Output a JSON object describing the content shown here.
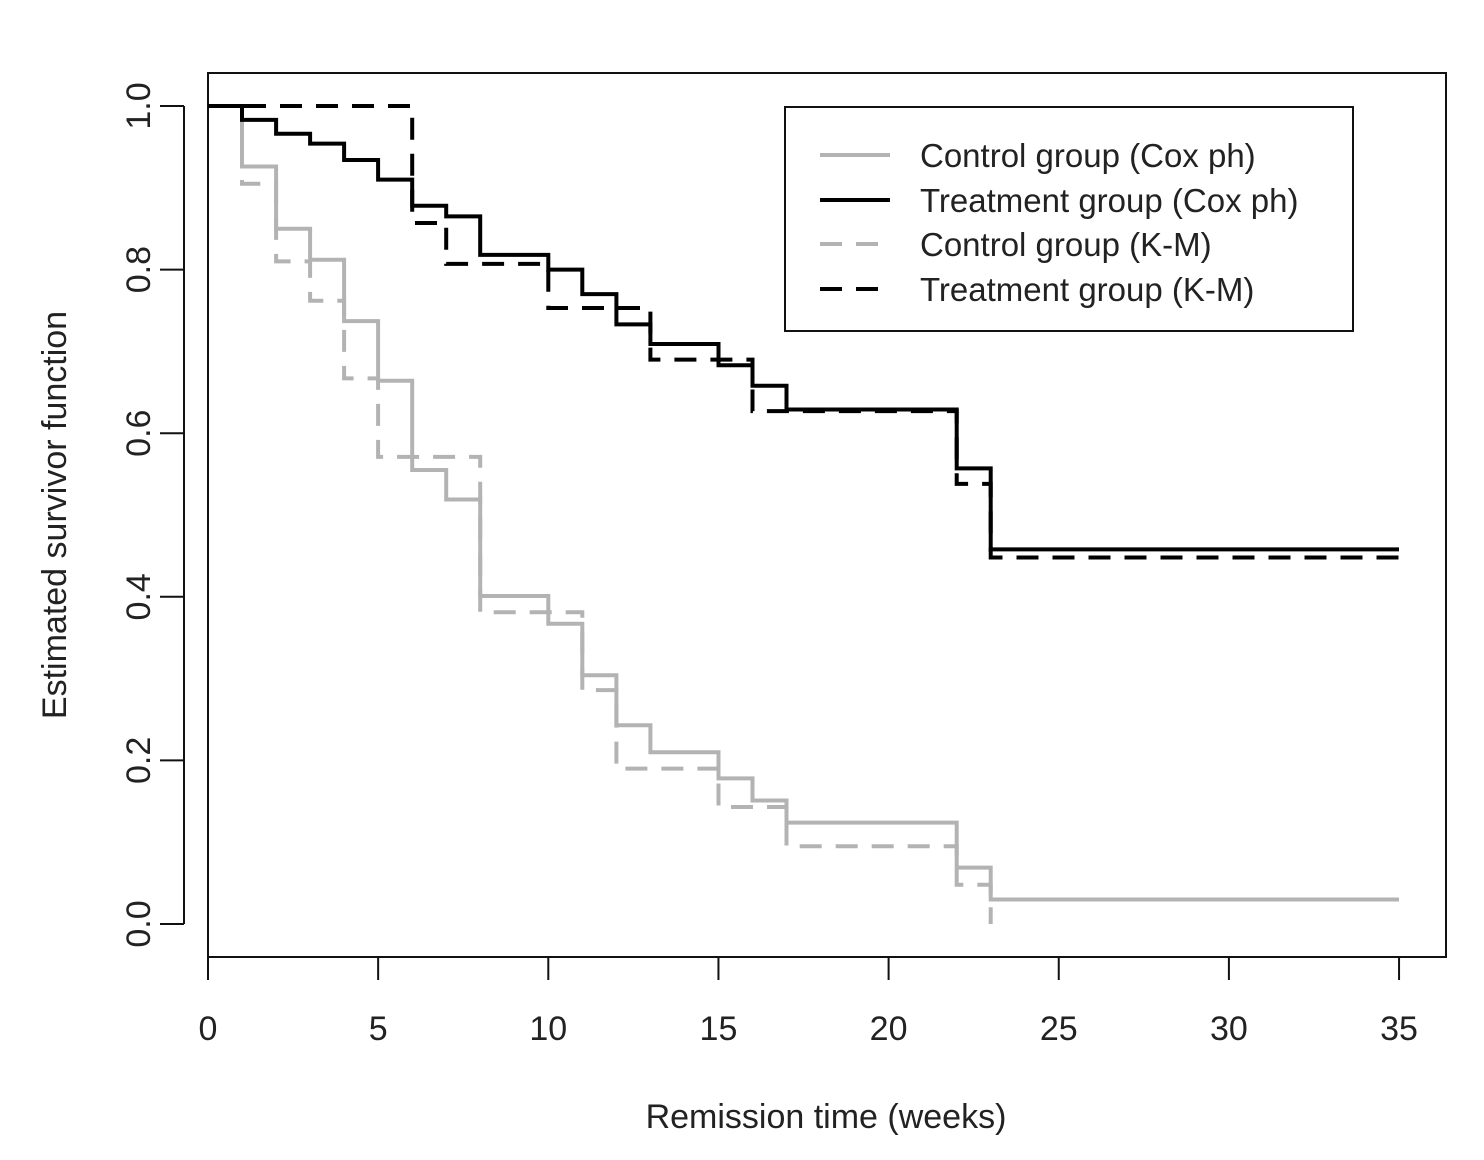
{
  "chart_data": {
    "type": "line",
    "title": "",
    "xlabel": "Remission time (weeks)",
    "ylabel": "Estimated survivor function",
    "xlim": [
      0,
      36.5
    ],
    "ylim": [
      -0.04,
      1.04
    ],
    "x_ticks": [
      0,
      5,
      10,
      15,
      20,
      25,
      30,
      35
    ],
    "y_ticks": [
      0.0,
      0.2,
      0.4,
      0.6,
      0.8,
      1.0
    ],
    "y_tick_labels": [
      "0.0",
      "0.2",
      "0.4",
      "0.6",
      "0.8",
      "1.0"
    ],
    "grid": false,
    "legend_position": "top-right",
    "series": [
      {
        "name": "Control group (Cox ph)",
        "color": "#b3b3b3",
        "line_style": "solid",
        "x": [
          0,
          1,
          2,
          3,
          4,
          5,
          6,
          7,
          8,
          10,
          11,
          12,
          13,
          15,
          16,
          17,
          22,
          23,
          35
        ],
        "y": [
          1.0,
          0.926,
          0.85,
          0.812,
          0.737,
          0.664,
          0.555,
          0.519,
          0.401,
          0.367,
          0.304,
          0.243,
          0.21,
          0.178,
          0.151,
          0.124,
          0.069,
          0.03,
          0.03
        ]
      },
      {
        "name": "Treatment group (Cox ph)",
        "color": "#000000",
        "line_style": "solid",
        "x": [
          0,
          1,
          2,
          3,
          4,
          5,
          6,
          7,
          8,
          10,
          11,
          12,
          13,
          15,
          16,
          17,
          22,
          23,
          35
        ],
        "y": [
          1.0,
          0.983,
          0.966,
          0.954,
          0.934,
          0.91,
          0.878,
          0.865,
          0.818,
          0.8,
          0.77,
          0.733,
          0.709,
          0.683,
          0.658,
          0.629,
          0.557,
          0.458,
          0.458
        ]
      },
      {
        "name": "Control group (K-M)",
        "color": "#b3b3b3",
        "line_style": "dashed",
        "x": [
          0,
          1,
          2,
          3,
          4,
          5,
          8,
          11,
          12,
          15,
          17,
          22,
          23
        ],
        "y": [
          1.0,
          0.905,
          0.81,
          0.762,
          0.667,
          0.571,
          0.381,
          0.286,
          0.19,
          0.143,
          0.095,
          0.048,
          0.0
        ]
      },
      {
        "name": "Treatment group (K-M)",
        "color": "#000000",
        "line_style": "dashed",
        "x": [
          0,
          6,
          7,
          10,
          13,
          16,
          22,
          23,
          35
        ],
        "y": [
          1.0,
          0.857,
          0.807,
          0.753,
          0.69,
          0.627,
          0.538,
          0.448,
          0.448
        ]
      }
    ]
  }
}
